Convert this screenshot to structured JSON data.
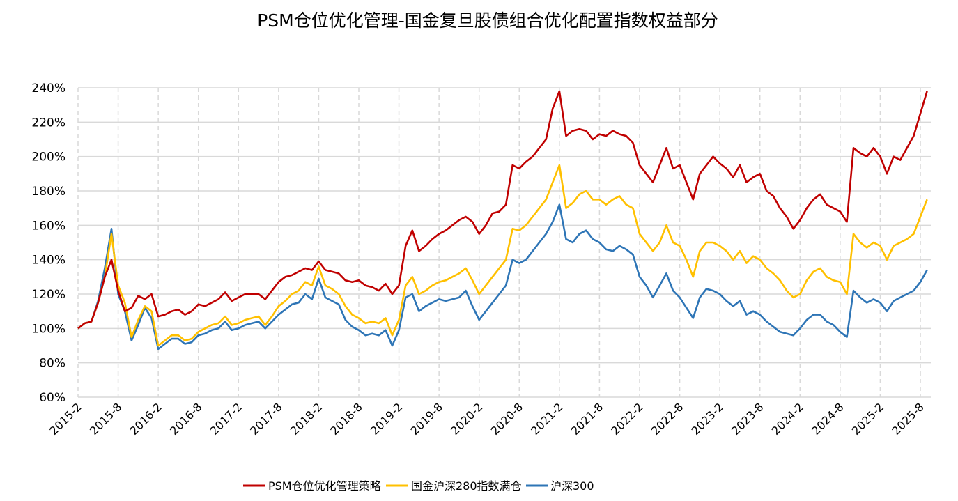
{
  "chart_data": {
    "type": "line",
    "title": "PSM仓位优化管理-国金复旦股债组合优化配置指数权益部分",
    "xlabel": "",
    "ylabel": "",
    "x_start": "2015-2",
    "x_step": "month",
    "ylim": [
      60,
      240
    ],
    "y_unit": "%",
    "yticks": [
      "60%",
      "80%",
      "100%",
      "120%",
      "140%",
      "160%",
      "180%",
      "200%",
      "220%",
      "240%"
    ],
    "ytick_values": [
      60,
      80,
      100,
      120,
      140,
      160,
      180,
      200,
      220,
      240
    ],
    "xticks": [
      "2015-2",
      "2015-8",
      "2016-2",
      "2016-8",
      "2017-2",
      "2017-8",
      "2018-2",
      "2018-8",
      "2019-2",
      "2019-8",
      "2020-2",
      "2020-8",
      "2021-2",
      "2021-8",
      "2022-2",
      "2022-8",
      "2023-2",
      "2023-8",
      "2024-2",
      "2024-8",
      "2025-2",
      "2025-8"
    ],
    "grid": true,
    "legend_position": "bottom",
    "series": [
      {
        "name": "PSM仓位优化管理策略",
        "color": "#C00000",
        "values": [
          100,
          103,
          104,
          115,
          130,
          140,
          122,
          110,
          112,
          119,
          117,
          120,
          107,
          108,
          110,
          111,
          108,
          110,
          114,
          113,
          115,
          117,
          121,
          116,
          118,
          120,
          120,
          120,
          117,
          122,
          127,
          130,
          131,
          133,
          135,
          134,
          139,
          134,
          133,
          132,
          128,
          127,
          128,
          125,
          124,
          122,
          126,
          120,
          125,
          148,
          157,
          145,
          148,
          152,
          155,
          157,
          160,
          163,
          165,
          162,
          155,
          160,
          167,
          168,
          172,
          195,
          193,
          197,
          200,
          205,
          210,
          228,
          238,
          212,
          215,
          216,
          215,
          210,
          213,
          212,
          215,
          213,
          212,
          208,
          195,
          190,
          185,
          195,
          205,
          193,
          195,
          185,
          175,
          190,
          195,
          200,
          196,
          193,
          188,
          195,
          185,
          188,
          190,
          180,
          177,
          170,
          165,
          158,
          163,
          170,
          175,
          178,
          172,
          170,
          168,
          162,
          205,
          202,
          200,
          205,
          200,
          190,
          200,
          198,
          205,
          212,
          225,
          238
        ]
      },
      {
        "name": "国金沪深280指数满仓",
        "color": "#FFC000",
        "values": [
          100,
          103,
          104,
          115,
          130,
          155,
          125,
          115,
          95,
          105,
          113,
          110,
          90,
          93,
          96,
          96,
          93,
          94,
          98,
          100,
          102,
          103,
          107,
          102,
          103,
          105,
          106,
          107,
          102,
          107,
          113,
          116,
          120,
          122,
          127,
          125,
          136,
          125,
          123,
          120,
          113,
          108,
          106,
          103,
          104,
          103,
          106,
          96,
          105,
          125,
          130,
          120,
          122,
          125,
          127,
          128,
          130,
          132,
          135,
          128,
          120,
          125,
          130,
          135,
          140,
          158,
          157,
          160,
          165,
          170,
          175,
          185,
          195,
          170,
          173,
          178,
          180,
          175,
          175,
          172,
          175,
          177,
          172,
          170,
          155,
          150,
          145,
          150,
          160,
          150,
          148,
          140,
          130,
          145,
          150,
          150,
          148,
          145,
          140,
          145,
          138,
          142,
          140,
          135,
          132,
          128,
          122,
          118,
          120,
          128,
          133,
          135,
          130,
          128,
          127,
          120,
          155,
          150,
          147,
          150,
          148,
          140,
          148,
          150,
          152,
          155,
          165,
          175
        ]
      },
      {
        "name": "沪深300",
        "color": "#2E75B6",
        "values": [
          100,
          103,
          104,
          116,
          135,
          158,
          120,
          110,
          93,
          102,
          112,
          106,
          88,
          91,
          94,
          94,
          91,
          92,
          96,
          97,
          99,
          100,
          104,
          99,
          100,
          102,
          103,
          104,
          100,
          104,
          108,
          111,
          114,
          115,
          120,
          117,
          129,
          118,
          116,
          114,
          105,
          101,
          99,
          96,
          97,
          96,
          99,
          90,
          99,
          118,
          120,
          110,
          113,
          115,
          117,
          116,
          117,
          118,
          122,
          113,
          105,
          110,
          115,
          120,
          125,
          140,
          138,
          140,
          145,
          150,
          155,
          162,
          172,
          152,
          150,
          155,
          157,
          152,
          150,
          146,
          145,
          148,
          146,
          143,
          130,
          125,
          118,
          125,
          132,
          122,
          118,
          112,
          106,
          118,
          123,
          122,
          120,
          116,
          113,
          116,
          108,
          110,
          108,
          104,
          101,
          98,
          97,
          96,
          100,
          105,
          108,
          108,
          104,
          102,
          98,
          95,
          122,
          118,
          115,
          117,
          115,
          110,
          116,
          118,
          120,
          122,
          127,
          134
        ]
      }
    ]
  }
}
